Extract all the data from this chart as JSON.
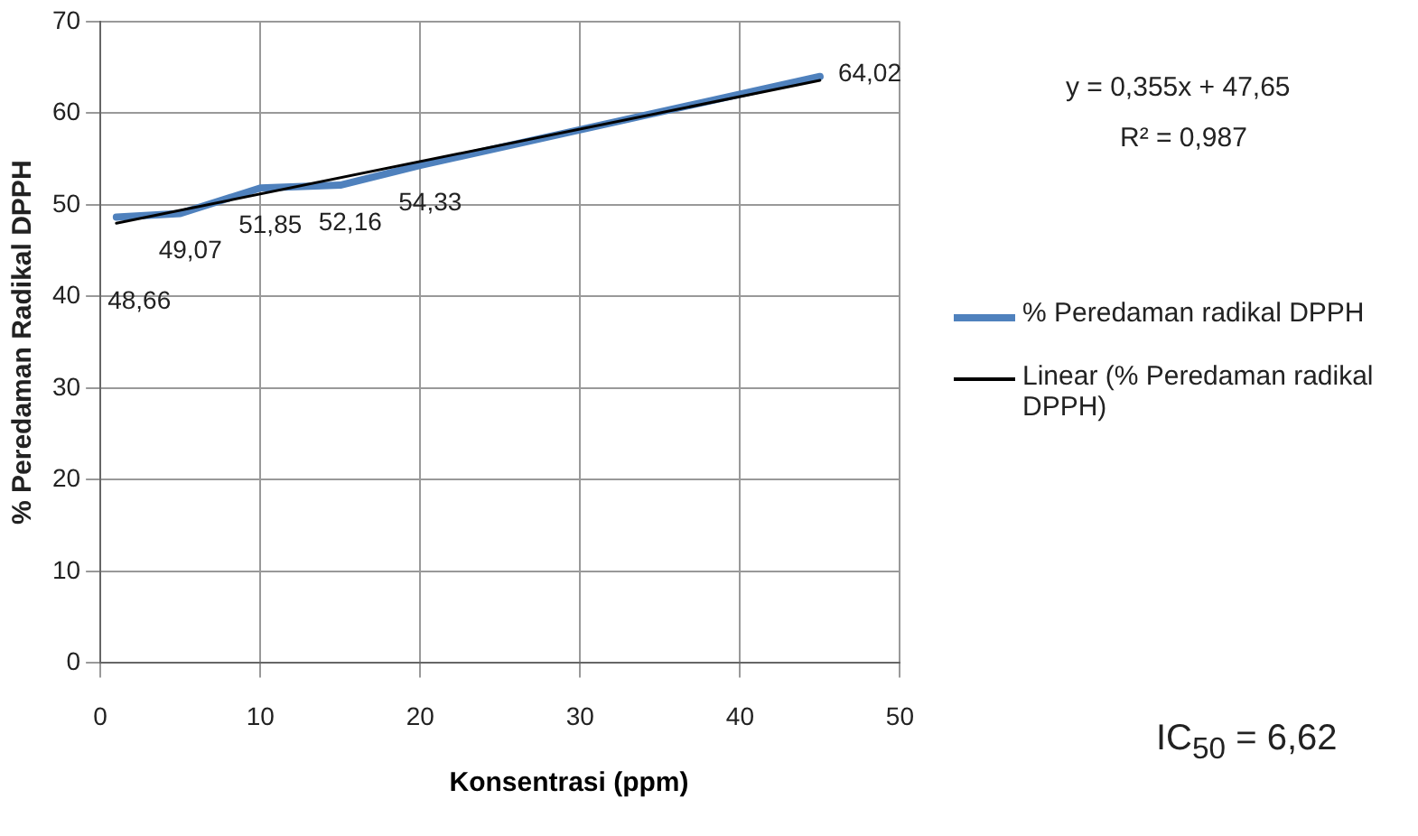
{
  "chart_data": {
    "type": "line",
    "xlabel": "Konsentrasi (ppm)",
    "ylabel": "% Peredaman Radikal DPPH",
    "x": [
      1,
      5,
      10,
      15,
      20,
      45
    ],
    "series": [
      {
        "name": "% Peredaman radikal DPPH",
        "color": "#4f81bd",
        "values": [
          48.66,
          49.07,
          51.85,
          52.16,
          54.33,
          64.02
        ],
        "value_labels": [
          "48,66",
          "49,07",
          "51,85",
          "52,16",
          "54,33",
          "64,02"
        ]
      },
      {
        "name": "Linear (% Peredaman radikal DPPH)",
        "color": "#000000",
        "type": "line",
        "x": [
          1,
          45
        ],
        "values": [
          48.0,
          63.6
        ]
      }
    ],
    "xlim": [
      0,
      50
    ],
    "xticks": [
      0,
      10,
      20,
      30,
      40,
      50
    ],
    "ylim": [
      0,
      70
    ],
    "yticks": [
      0,
      10,
      20,
      30,
      40,
      50,
      60,
      70
    ],
    "grid": true,
    "legend": "right",
    "marker": "none",
    "line_style": "solid",
    "annotations": [
      "y = 0,355x  + 47,65",
      "R² = 0,987",
      "IC$_{50}$ = 6,62"
    ]
  }
}
